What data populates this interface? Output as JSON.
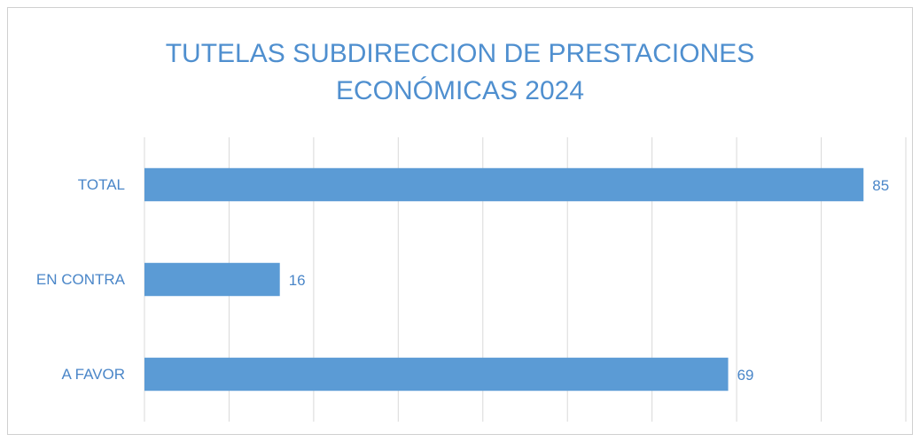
{
  "chart_data": {
    "type": "bar",
    "orientation": "horizontal",
    "title": [
      "TUTELAS SUBDIRECCION DE PRESTACIONES",
      "ECONÓMICAS 2024"
    ],
    "categories": [
      "TOTAL",
      "EN CONTRA",
      "A FAVOR"
    ],
    "values": [
      85,
      16,
      69
    ],
    "color": "#5b9bd5",
    "xlim": [
      0,
      90
    ],
    "xticks": [
      0,
      10,
      20,
      30,
      40,
      50,
      60,
      70,
      80,
      90
    ],
    "grid": true
  }
}
